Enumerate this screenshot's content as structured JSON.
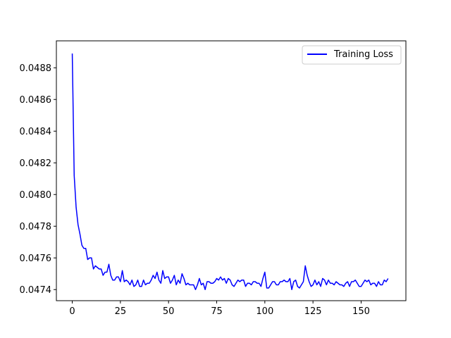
{
  "chart_data": {
    "type": "line",
    "title": "",
    "xlabel": "",
    "ylabel": "",
    "xlim": [
      -8.25,
      173.25
    ],
    "ylim": [
      0.04733,
      0.04897
    ],
    "xticks": [
      0,
      25,
      50,
      75,
      100,
      125,
      150
    ],
    "xtick_labels": [
      "0",
      "25",
      "50",
      "75",
      "100",
      "125",
      "150"
    ],
    "yticks": [
      0.0474,
      0.0476,
      0.0478,
      0.048,
      0.0482,
      0.0484,
      0.0486,
      0.0488
    ],
    "ytick_labels": [
      "0.0474",
      "0.0476",
      "0.0478",
      "0.0480",
      "0.0482",
      "0.0484",
      "0.0486",
      "0.0488"
    ],
    "grid": false,
    "legend_position": "top-right",
    "series": [
      {
        "name": "Training Loss",
        "color": "#0000ff",
        "x": [
          0,
          1,
          2,
          3,
          4,
          5,
          6,
          7,
          8,
          9,
          10,
          11,
          12,
          13,
          14,
          15,
          16,
          17,
          18,
          19,
          20,
          21,
          22,
          23,
          24,
          25,
          26,
          27,
          28,
          29,
          30,
          31,
          32,
          33,
          34,
          35,
          36,
          37,
          38,
          39,
          40,
          41,
          42,
          43,
          44,
          45,
          46,
          47,
          48,
          49,
          50,
          51,
          52,
          53,
          54,
          55,
          56,
          57,
          58,
          59,
          60,
          61,
          62,
          63,
          64,
          65,
          66,
          67,
          68,
          69,
          70,
          71,
          72,
          73,
          74,
          75,
          76,
          77,
          78,
          79,
          80,
          81,
          82,
          83,
          84,
          85,
          86,
          87,
          88,
          89,
          90,
          91,
          92,
          93,
          94,
          95,
          96,
          97,
          98,
          99,
          100,
          101,
          102,
          103,
          104,
          105,
          106,
          107,
          108,
          109,
          110,
          111,
          112,
          113,
          114,
          115,
          116,
          117,
          118,
          119,
          120,
          121,
          122,
          123,
          124,
          125,
          126,
          127,
          128,
          129,
          130,
          131,
          132,
          133,
          134,
          135,
          136,
          137,
          138,
          139,
          140,
          141,
          142,
          143,
          144,
          145,
          146,
          147,
          148,
          149,
          150,
          151,
          152,
          153,
          154,
          155,
          156,
          157,
          158,
          159,
          160,
          161,
          162,
          163,
          164
        ],
        "values": [
          0.04889,
          0.04812,
          0.04792,
          0.04781,
          0.04775,
          0.04768,
          0.04766,
          0.04766,
          0.04759,
          0.0476,
          0.0476,
          0.04753,
          0.04755,
          0.04754,
          0.04753,
          0.04753,
          0.04749,
          0.04751,
          0.04751,
          0.04756,
          0.04749,
          0.04746,
          0.04746,
          0.04748,
          0.04748,
          0.04745,
          0.04752,
          0.04745,
          0.04746,
          0.04745,
          0.04743,
          0.04746,
          0.04742,
          0.04743,
          0.04746,
          0.04742,
          0.04742,
          0.04746,
          0.04743,
          0.04744,
          0.04744,
          0.04746,
          0.04749,
          0.04747,
          0.04751,
          0.04746,
          0.04744,
          0.04752,
          0.04747,
          0.04748,
          0.04748,
          0.04744,
          0.04746,
          0.04749,
          0.04743,
          0.04746,
          0.04744,
          0.0475,
          0.04747,
          0.04743,
          0.04744,
          0.04743,
          0.04743,
          0.04743,
          0.0474,
          0.04743,
          0.04747,
          0.04743,
          0.04744,
          0.0474,
          0.04745,
          0.04745,
          0.04744,
          0.04744,
          0.04745,
          0.04747,
          0.04746,
          0.04748,
          0.04746,
          0.04747,
          0.04744,
          0.04747,
          0.04746,
          0.04743,
          0.04742,
          0.04744,
          0.04746,
          0.04745,
          0.04746,
          0.04746,
          0.04742,
          0.04744,
          0.04744,
          0.04743,
          0.04745,
          0.04745,
          0.04744,
          0.04744,
          0.04742,
          0.04747,
          0.04751,
          0.04741,
          0.04741,
          0.04743,
          0.04745,
          0.04745,
          0.04743,
          0.04743,
          0.04745,
          0.04745,
          0.04746,
          0.04745,
          0.04745,
          0.04747,
          0.0474,
          0.04745,
          0.04746,
          0.04742,
          0.04741,
          0.04743,
          0.04745,
          0.04755,
          0.04749,
          0.04745,
          0.04742,
          0.04743,
          0.04746,
          0.04743,
          0.04745,
          0.04742,
          0.04747,
          0.04746,
          0.04743,
          0.04746,
          0.04744,
          0.04744,
          0.04743,
          0.04745,
          0.04744,
          0.04743,
          0.04743,
          0.04742,
          0.04744,
          0.04745,
          0.04742,
          0.04745,
          0.04745,
          0.04746,
          0.04744,
          0.04742,
          0.04742,
          0.04744,
          0.04746,
          0.04745,
          0.04746,
          0.04743,
          0.04744,
          0.04744,
          0.04742,
          0.04745,
          0.04743,
          0.04743,
          0.04746,
          0.04745,
          0.04747
        ]
      }
    ]
  }
}
